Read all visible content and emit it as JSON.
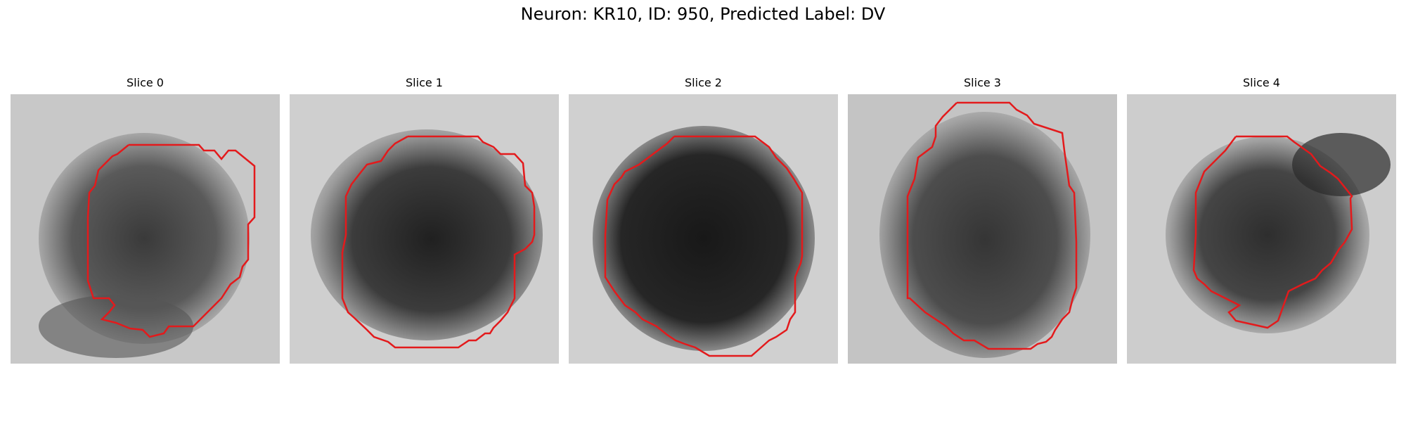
{
  "figure": {
    "title": "Neuron: KR10, ID: 950, Predicted Label: DV"
  },
  "slices": [
    {
      "title": "Slice 0",
      "contour_color": "#e31a1c"
    },
    {
      "title": "Slice 1",
      "contour_color": "#e31a1c"
    },
    {
      "title": "Slice 2",
      "contour_color": "#e31a1c"
    },
    {
      "title": "Slice 3",
      "contour_color": "#e31a1c"
    },
    {
      "title": "Slice 4",
      "contour_color": "#e31a1c"
    }
  ]
}
